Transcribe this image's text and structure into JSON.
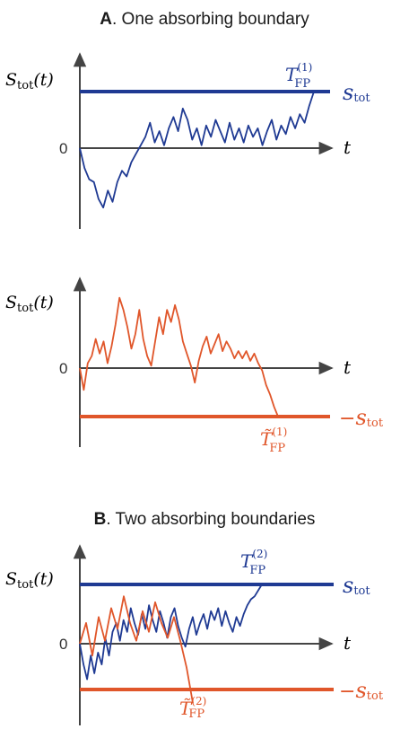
{
  "panel_a": {
    "letter": "A",
    "title": ". One absorbing boundary"
  },
  "panel_b": {
    "letter": "B",
    "title": ". Two absorbing boundaries"
  },
  "labels": {
    "y_axis_main": "S",
    "y_axis_sub": "tot",
    "y_axis_arg": "(t)",
    "x_axis": "t",
    "zero": "0",
    "boundary_var": "s",
    "boundary_sub": "tot",
    "neg_boundary_prefix": "−",
    "fp_T": "T",
    "fp_T_tilde": "T̃",
    "fp_sub": "FP",
    "sup_1": "(1)",
    "sup_2": "(2)"
  },
  "colors": {
    "upper": "#1f3a93",
    "lower": "#e0562a",
    "axis": "#444444"
  },
  "chart_data": [
    {
      "type": "line",
      "panel": "A-top",
      "boundary_upper": 1.0,
      "series": [
        {
          "color": "#1f3a93",
          "x": [
            0,
            0.02,
            0.04,
            0.06,
            0.08,
            0.1,
            0.12,
            0.14,
            0.16,
            0.18,
            0.2,
            0.22,
            0.24,
            0.26,
            0.28,
            0.3,
            0.32,
            0.34,
            0.36,
            0.38,
            0.4,
            0.42,
            0.44,
            0.46,
            0.48,
            0.5,
            0.52,
            0.54,
            0.56,
            0.58,
            0.6,
            0.62,
            0.64,
            0.66,
            0.68,
            0.7,
            0.72,
            0.74,
            0.76,
            0.78,
            0.8,
            0.82,
            0.84,
            0.86,
            0.88,
            0.9,
            0.92,
            0.94,
            0.96,
            0.98,
            1.0
          ],
          "values": [
            0,
            -0.35,
            -0.55,
            -0.6,
            -0.9,
            -1.05,
            -0.75,
            -0.95,
            -0.6,
            -0.4,
            -0.5,
            -0.25,
            -0.1,
            0.05,
            0.2,
            0.45,
            0.1,
            0.3,
            0.05,
            0.35,
            0.55,
            0.3,
            0.7,
            0.5,
            0.15,
            0.35,
            0.05,
            0.4,
            0.2,
            0.5,
            0.3,
            0.1,
            0.45,
            0.15,
            0.35,
            0.1,
            0.4,
            0.2,
            0.35,
            0.05,
            0.3,
            0.5,
            0.15,
            0.4,
            0.25,
            0.55,
            0.35,
            0.6,
            0.45,
            0.75,
            1.0
          ]
        }
      ]
    },
    {
      "type": "line",
      "panel": "A-bottom",
      "boundary_lower": -1.0,
      "series": [
        {
          "color": "#e0562a",
          "x": [
            0,
            0.02,
            0.04,
            0.06,
            0.08,
            0.1,
            0.12,
            0.14,
            0.16,
            0.18,
            0.2,
            0.22,
            0.24,
            0.26,
            0.28,
            0.3,
            0.32,
            0.34,
            0.36,
            0.38,
            0.4,
            0.42,
            0.44,
            0.46,
            0.48,
            0.5,
            0.52,
            0.54,
            0.56,
            0.58,
            0.6,
            0.62,
            0.64,
            0.66,
            0.68,
            0.7,
            0.72,
            0.74,
            0.76,
            0.78,
            0.8,
            0.82,
            0.84,
            0.86,
            0.88,
            0.9,
            0.92,
            0.94,
            0.96,
            0.98,
            1.0
          ],
          "values": [
            0,
            -0.45,
            0.1,
            0.25,
            0.6,
            0.3,
            0.55,
            0.1,
            0.45,
            0.9,
            1.45,
            1.2,
            0.85,
            0.4,
            0.7,
            1.2,
            0.6,
            0.25,
            0.05,
            0.55,
            1.05,
            0.7,
            1.2,
            0.95,
            1.3,
            1.0,
            0.55,
            0.3,
            0.05,
            -0.3,
            0.15,
            0.45,
            0.65,
            0.3,
            0.5,
            0.7,
            0.35,
            0.55,
            0.4,
            0.2,
            0.35,
            0.2,
            0.35,
            0.15,
            0.3,
            0.1,
            -0.05,
            -0.35,
            -0.55,
            -0.8,
            -1.0
          ]
        }
      ]
    },
    {
      "type": "line",
      "panel": "B",
      "boundary_upper": 1.0,
      "boundary_lower": -1.0,
      "series": [
        {
          "color": "#1f3a93",
          "x": [
            0,
            0.02,
            0.04,
            0.06,
            0.08,
            0.1,
            0.12,
            0.14,
            0.16,
            0.18,
            0.2,
            0.22,
            0.24,
            0.26,
            0.28,
            0.3,
            0.32,
            0.34,
            0.36,
            0.38,
            0.4,
            0.42,
            0.44,
            0.46,
            0.48,
            0.5,
            0.52,
            0.54,
            0.56,
            0.58,
            0.6,
            0.62,
            0.64,
            0.66,
            0.68,
            0.7,
            0.72,
            0.74,
            0.76,
            0.78,
            0.8,
            0.82,
            0.84,
            0.86,
            0.88,
            0.9,
            0.92,
            0.94,
            0.96,
            0.98,
            1.0
          ],
          "values": [
            0,
            -0.35,
            -0.6,
            -0.2,
            -0.5,
            -0.15,
            -0.35,
            0.1,
            -0.2,
            0.2,
            0.35,
            0.05,
            0.4,
            0.2,
            0.6,
            0.35,
            0.15,
            0.5,
            0.25,
            0.65,
            0.4,
            0.2,
            0.55,
            0.35,
            0.1,
            0.45,
            0.6,
            0.3,
            0.1,
            -0.05,
            0.25,
            0.45,
            0.15,
            0.35,
            0.5,
            0.25,
            0.55,
            0.4,
            0.6,
            0.3,
            0.55,
            0.35,
            0.2,
            0.45,
            0.3,
            0.5,
            0.65,
            0.75,
            0.8,
            0.9,
            1.0
          ]
        },
        {
          "color": "#e0562a",
          "x": [
            0,
            0.03,
            0.06,
            0.09,
            0.12,
            0.15,
            0.18,
            0.21,
            0.24,
            0.27,
            0.3,
            0.33,
            0.36,
            0.39,
            0.42,
            0.45,
            0.48,
            0.51,
            0.54
          ],
          "values": [
            0,
            0.35,
            -0.2,
            0.45,
            0.05,
            0.6,
            0.25,
            0.8,
            0.35,
            0.05,
            0.55,
            0.2,
            0.7,
            0.35,
            0.1,
            0.45,
            0.05,
            -0.4,
            -1.0
          ]
        }
      ]
    }
  ]
}
